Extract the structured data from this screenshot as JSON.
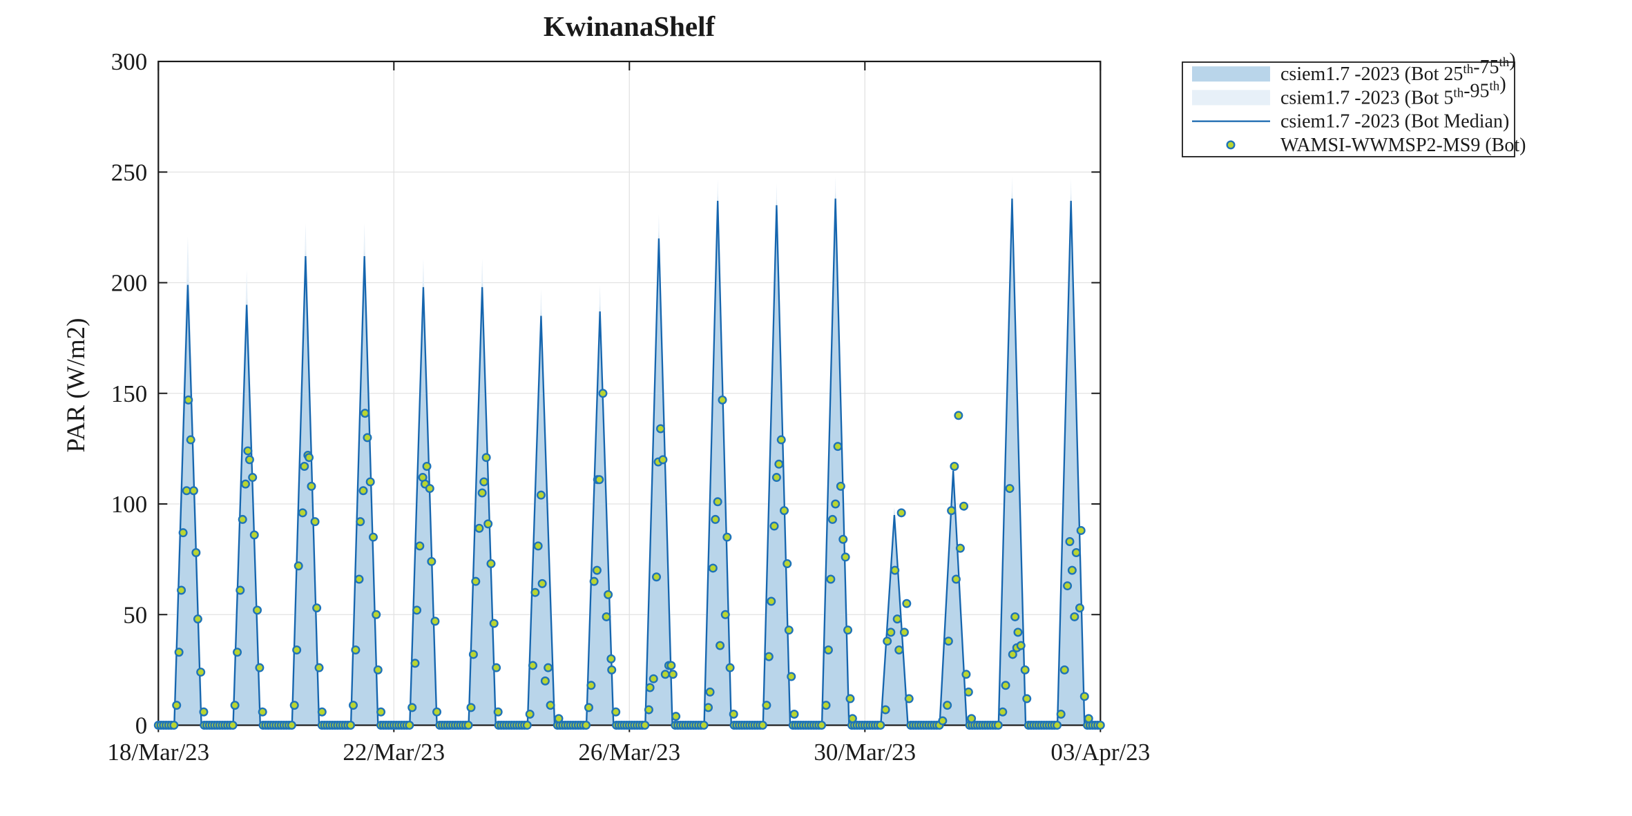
{
  "figure": {
    "title": "KwinanaShelf",
    "background": "#ffffff"
  },
  "chart_data": {
    "type": "line",
    "subtype": "diurnal-triangles-with-percentile-bands-and-scatter",
    "title": "KwinanaShelf",
    "xlabel": "",
    "ylabel": "PAR (W/m2)",
    "ylim": [
      0,
      300
    ],
    "yticks": [
      0,
      50,
      100,
      150,
      200,
      250,
      300
    ],
    "xlim_days": [
      0,
      16
    ],
    "xtick_days": [
      0,
      4,
      8,
      12,
      16
    ],
    "xtick_labels": [
      "18/Mar/23",
      "22/Mar/23",
      "26/Mar/23",
      "30/Mar/23",
      "03/Apr/23"
    ],
    "grid": true,
    "legend_position": "outside-top-right",
    "colors": {
      "median_line": "#1565ae",
      "band_25_75": "#b9d5ea",
      "band_5_95": "#e7f0f8",
      "marker_edge": "#1e73b8",
      "marker_fill": "#b9d531",
      "grid": "#e2e2e2",
      "axis": "#1a1a1a"
    },
    "day_peaks_median": [
      199,
      190,
      212,
      212,
      198,
      198,
      185,
      187,
      220,
      237,
      235,
      238,
      95,
      115,
      238,
      237
    ],
    "p95_extra_above_median": [
      22,
      16,
      15,
      15,
      13,
      13,
      12,
      12,
      11,
      10,
      10,
      10,
      4,
      5,
      10,
      10
    ],
    "p75_extra_above_median": 3,
    "median_base_halfwidth_day": 0.23,
    "band75_base_halfwidth_day": 0.24,
    "band95_base_halfwidth_day": 0.25,
    "night_zero_markers": {
      "start_offset": 0.78,
      "end_offset": 1.28,
      "step": 0.044
    },
    "observations_day_frac_value": [
      [
        [
          0.31,
          9
        ],
        [
          0.35,
          33
        ],
        [
          0.39,
          61
        ],
        [
          0.42,
          87
        ],
        [
          0.48,
          106
        ],
        [
          0.51,
          147
        ],
        [
          0.55,
          129
        ],
        [
          0.6,
          106
        ],
        [
          0.64,
          78
        ],
        [
          0.67,
          48
        ],
        [
          0.72,
          24
        ],
        [
          0.77,
          6
        ]
      ],
      [
        [
          0.3,
          9
        ],
        [
          0.34,
          33
        ],
        [
          0.39,
          61
        ],
        [
          0.43,
          93
        ],
        [
          0.48,
          109
        ],
        [
          0.52,
          124
        ],
        [
          0.55,
          120
        ],
        [
          0.6,
          112
        ],
        [
          0.63,
          86
        ],
        [
          0.68,
          52
        ],
        [
          0.72,
          26
        ],
        [
          0.77,
          6
        ]
      ],
      [
        [
          0.31,
          9
        ],
        [
          0.35,
          34
        ],
        [
          0.38,
          72
        ],
        [
          0.45,
          96
        ],
        [
          0.48,
          117
        ],
        [
          0.54,
          122
        ],
        [
          0.56,
          121
        ],
        [
          0.6,
          108
        ],
        [
          0.66,
          92
        ],
        [
          0.69,
          53
        ],
        [
          0.73,
          26
        ],
        [
          0.78,
          6
        ]
      ],
      [
        [
          0.31,
          9
        ],
        [
          0.35,
          34
        ],
        [
          0.41,
          66
        ],
        [
          0.43,
          92
        ],
        [
          0.48,
          106
        ],
        [
          0.51,
          141
        ],
        [
          0.55,
          130
        ],
        [
          0.6,
          110
        ],
        [
          0.65,
          85
        ],
        [
          0.7,
          50
        ],
        [
          0.73,
          25
        ],
        [
          0.78,
          6
        ]
      ],
      [
        [
          0.31,
          8
        ],
        [
          0.36,
          28
        ],
        [
          0.39,
          52
        ],
        [
          0.44,
          81
        ],
        [
          0.49,
          112
        ],
        [
          0.53,
          109
        ],
        [
          0.56,
          117
        ],
        [
          0.61,
          107
        ],
        [
          0.64,
          74
        ],
        [
          0.7,
          47
        ],
        [
          0.73,
          6
        ]
      ],
      [
        [
          0.31,
          8
        ],
        [
          0.35,
          32
        ],
        [
          0.39,
          65
        ],
        [
          0.45,
          89
        ],
        [
          0.5,
          105
        ],
        [
          0.53,
          110
        ],
        [
          0.57,
          121
        ],
        [
          0.6,
          91
        ],
        [
          0.65,
          73
        ],
        [
          0.7,
          46
        ],
        [
          0.74,
          26
        ],
        [
          0.77,
          6
        ]
      ],
      [
        [
          0.31,
          5
        ],
        [
          0.36,
          27
        ],
        [
          0.4,
          60
        ],
        [
          0.45,
          81
        ],
        [
          0.5,
          104
        ],
        [
          0.52,
          64
        ],
        [
          0.57,
          20
        ],
        [
          0.62,
          26
        ],
        [
          0.66,
          9
        ],
        [
          0.8,
          3
        ]
      ],
      [
        [
          0.31,
          8
        ],
        [
          0.35,
          18
        ],
        [
          0.4,
          65
        ],
        [
          0.45,
          70
        ],
        [
          0.46,
          111
        ],
        [
          0.49,
          111
        ],
        [
          0.55,
          150
        ],
        [
          0.61,
          49
        ],
        [
          0.64,
          59
        ],
        [
          0.69,
          30
        ],
        [
          0.7,
          25
        ],
        [
          0.77,
          6
        ]
      ],
      [
        [
          0.33,
          7
        ],
        [
          0.35,
          17
        ],
        [
          0.41,
          21
        ],
        [
          0.46,
          67
        ],
        [
          0.49,
          119
        ],
        [
          0.53,
          134
        ],
        [
          0.57,
          120
        ],
        [
          0.61,
          23
        ],
        [
          0.67,
          27
        ],
        [
          0.71,
          27
        ],
        [
          0.74,
          23
        ],
        [
          0.79,
          4
        ]
      ],
      [
        [
          0.34,
          8
        ],
        [
          0.37,
          15
        ],
        [
          0.42,
          71
        ],
        [
          0.46,
          93
        ],
        [
          0.5,
          101
        ],
        [
          0.54,
          36
        ],
        [
          0.58,
          147
        ],
        [
          0.63,
          50
        ],
        [
          0.66,
          85
        ],
        [
          0.71,
          26
        ],
        [
          0.77,
          5
        ]
      ],
      [
        [
          0.33,
          9
        ],
        [
          0.37,
          31
        ],
        [
          0.41,
          56
        ],
        [
          0.46,
          90
        ],
        [
          0.5,
          112
        ],
        [
          0.54,
          118
        ],
        [
          0.58,
          129
        ],
        [
          0.63,
          97
        ],
        [
          0.68,
          73
        ],
        [
          0.71,
          43
        ],
        [
          0.75,
          22
        ],
        [
          0.8,
          5
        ]
      ],
      [
        [
          0.34,
          9
        ],
        [
          0.38,
          34
        ],
        [
          0.42,
          66
        ],
        [
          0.45,
          93
        ],
        [
          0.5,
          100
        ],
        [
          0.54,
          126
        ],
        [
          0.59,
          108
        ],
        [
          0.63,
          84
        ],
        [
          0.67,
          76
        ],
        [
          0.71,
          43
        ],
        [
          0.75,
          12
        ],
        [
          0.79,
          3
        ]
      ],
      [
        [
          0.35,
          7
        ],
        [
          0.38,
          38
        ],
        [
          0.44,
          42
        ],
        [
          0.51,
          70
        ],
        [
          0.55,
          48
        ],
        [
          0.58,
          34
        ],
        [
          0.62,
          96
        ],
        [
          0.67,
          42
        ],
        [
          0.71,
          55
        ],
        [
          0.75,
          12
        ]
      ],
      [
        [
          0.32,
          2
        ],
        [
          0.4,
          9
        ],
        [
          0.42,
          38
        ],
        [
          0.47,
          97
        ],
        [
          0.52,
          117
        ],
        [
          0.55,
          66
        ],
        [
          0.59,
          140
        ],
        [
          0.62,
          80
        ],
        [
          0.68,
          99
        ],
        [
          0.72,
          23
        ],
        [
          0.76,
          15
        ],
        [
          0.81,
          3
        ]
      ],
      [
        [
          0.34,
          6
        ],
        [
          0.39,
          18
        ],
        [
          0.46,
          107
        ],
        [
          0.51,
          32
        ],
        [
          0.55,
          49
        ],
        [
          0.58,
          35
        ],
        [
          0.6,
          42
        ],
        [
          0.65,
          36
        ],
        [
          0.72,
          25
        ],
        [
          0.75,
          12
        ]
      ],
      [
        [
          0.33,
          5
        ],
        [
          0.39,
          25
        ],
        [
          0.44,
          63
        ],
        [
          0.48,
          83
        ],
        [
          0.52,
          70
        ],
        [
          0.56,
          49
        ],
        [
          0.59,
          78
        ],
        [
          0.65,
          53
        ],
        [
          0.67,
          88
        ],
        [
          0.73,
          13
        ],
        [
          0.8,
          3
        ]
      ]
    ]
  },
  "legend": {
    "entries": [
      {
        "label": "csiem1.7  -2023  (Bot  25th-75th)",
        "swatch": "band",
        "color": "#b9d5ea"
      },
      {
        "label": "csiem1.7  -2023  (Bot  5th-95th)",
        "swatch": "band",
        "color": "#e7f0f8"
      },
      {
        "label": "csiem1.7 -2023 (Bot Median)",
        "swatch": "line",
        "color": "#1565ae"
      },
      {
        "label": "WAMSI-WWMSP2-MS9 (Bot)",
        "swatch": "marker",
        "color": "#b9d531"
      }
    ]
  }
}
